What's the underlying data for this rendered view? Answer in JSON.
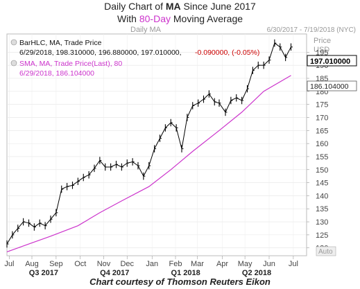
{
  "title": {
    "line1_prefix": "Daily Chart of ",
    "line1_ticker": "MA",
    "line1_suffix": " Since June 2017",
    "line2_prefix": "With ",
    "line2_highlight": "80-Day",
    "line2_suffix": " Moving Average"
  },
  "caption": "Chart courtesy of Thomson Reuters Eikon",
  "chart_header": {
    "label": "Daily MA",
    "date_range": "6/30/2017 - 7/19/2018 (NYC)"
  },
  "price_panel": {
    "label1": "Price",
    "label2": "USD",
    "current_price": "197.010000",
    "sma_price": "186.104000",
    "auto_label": "Auto"
  },
  "legend": {
    "bar_series": "BarHLC, MA, Trade Price",
    "bar_values": "6/29/2018, 198.310000, 196.880000, 197.010000,",
    "bar_change": "-0.090000, (-0.05%)",
    "sma_series": "SMA, MA, Trade Price(Last), 80",
    "sma_values": "6/29/2018, 186.104000"
  },
  "colors": {
    "price": "#000000",
    "sma": "#cc33cc",
    "change": "#cc0000",
    "grid": "#dddddd",
    "axis_text": "#444444"
  },
  "chart_data": {
    "type": "line",
    "title": "Daily Chart of MA Since June 2017 With 80-Day Moving Average",
    "xlabel": "",
    "ylabel": "Price USD",
    "ylim": [
      117,
      202
    ],
    "yticks": [
      120,
      125,
      130,
      135,
      140,
      145,
      150,
      155,
      160,
      165,
      170,
      175,
      180,
      185,
      190,
      195
    ],
    "month_ticks": [
      "Jul",
      "Aug",
      "Sep",
      "Oct",
      "Nov",
      "Dec",
      "Jan",
      "Feb",
      "Mar",
      "Apr",
      "May",
      "Jun",
      "Jul"
    ],
    "quarter_labels": [
      "Q3 2017",
      "Q4 2017",
      "Q1 2018",
      "Q2 2018"
    ],
    "grid": true,
    "series": [
      {
        "name": "BarHLC, MA, Trade Price",
        "x": [
          "2017-06-30",
          "2017-07-07",
          "2017-07-14",
          "2017-07-21",
          "2017-07-28",
          "2017-08-04",
          "2017-08-11",
          "2017-08-18",
          "2017-08-25",
          "2017-09-01",
          "2017-09-08",
          "2017-09-15",
          "2017-09-22",
          "2017-09-29",
          "2017-10-06",
          "2017-10-13",
          "2017-10-20",
          "2017-10-27",
          "2017-11-03",
          "2017-11-10",
          "2017-11-17",
          "2017-11-24",
          "2017-12-01",
          "2017-12-08",
          "2017-12-15",
          "2017-12-22",
          "2017-12-29",
          "2018-01-05",
          "2018-01-12",
          "2018-01-19",
          "2018-01-26",
          "2018-02-02",
          "2018-02-09",
          "2018-02-16",
          "2018-02-23",
          "2018-03-02",
          "2018-03-09",
          "2018-03-16",
          "2018-03-23",
          "2018-03-29",
          "2018-04-06",
          "2018-04-13",
          "2018-04-20",
          "2018-04-27",
          "2018-05-04",
          "2018-05-11",
          "2018-05-18",
          "2018-05-25",
          "2018-06-01",
          "2018-06-08",
          "2018-06-15",
          "2018-06-22",
          "2018-06-29"
        ],
        "values": [
          121.5,
          125.0,
          127.5,
          130.0,
          129.5,
          128.0,
          129.5,
          128.5,
          131.0,
          133.5,
          142.5,
          143.5,
          144.0,
          145.5,
          147.0,
          148.0,
          150.5,
          153.5,
          151.0,
          151.0,
          152.0,
          151.0,
          152.5,
          153.0,
          151.5,
          147.5,
          151.5,
          158.0,
          162.0,
          166.0,
          168.0,
          166.0,
          158.0,
          170.0,
          174.5,
          175.5,
          177.0,
          179.0,
          176.0,
          175.5,
          172.0,
          176.5,
          177.5,
          176.5,
          181.0,
          188.0,
          190.0,
          190.0,
          192.0,
          198.5,
          197.0,
          193.0,
          197.0
        ]
      },
      {
        "name": "SMA, MA, Trade Price(Last), 80",
        "x": [
          "2017-06-30",
          "2017-07-28",
          "2017-08-25",
          "2017-09-29",
          "2017-10-27",
          "2017-11-24",
          "2017-12-29",
          "2018-01-26",
          "2018-02-23",
          "2018-03-29",
          "2018-04-27",
          "2018-05-25",
          "2018-06-29"
        ],
        "values": [
          118.5,
          121.5,
          124.5,
          128.5,
          133.5,
          138.0,
          143.5,
          150.0,
          157.0,
          165.0,
          172.0,
          180.0,
          186.1
        ]
      }
    ]
  }
}
